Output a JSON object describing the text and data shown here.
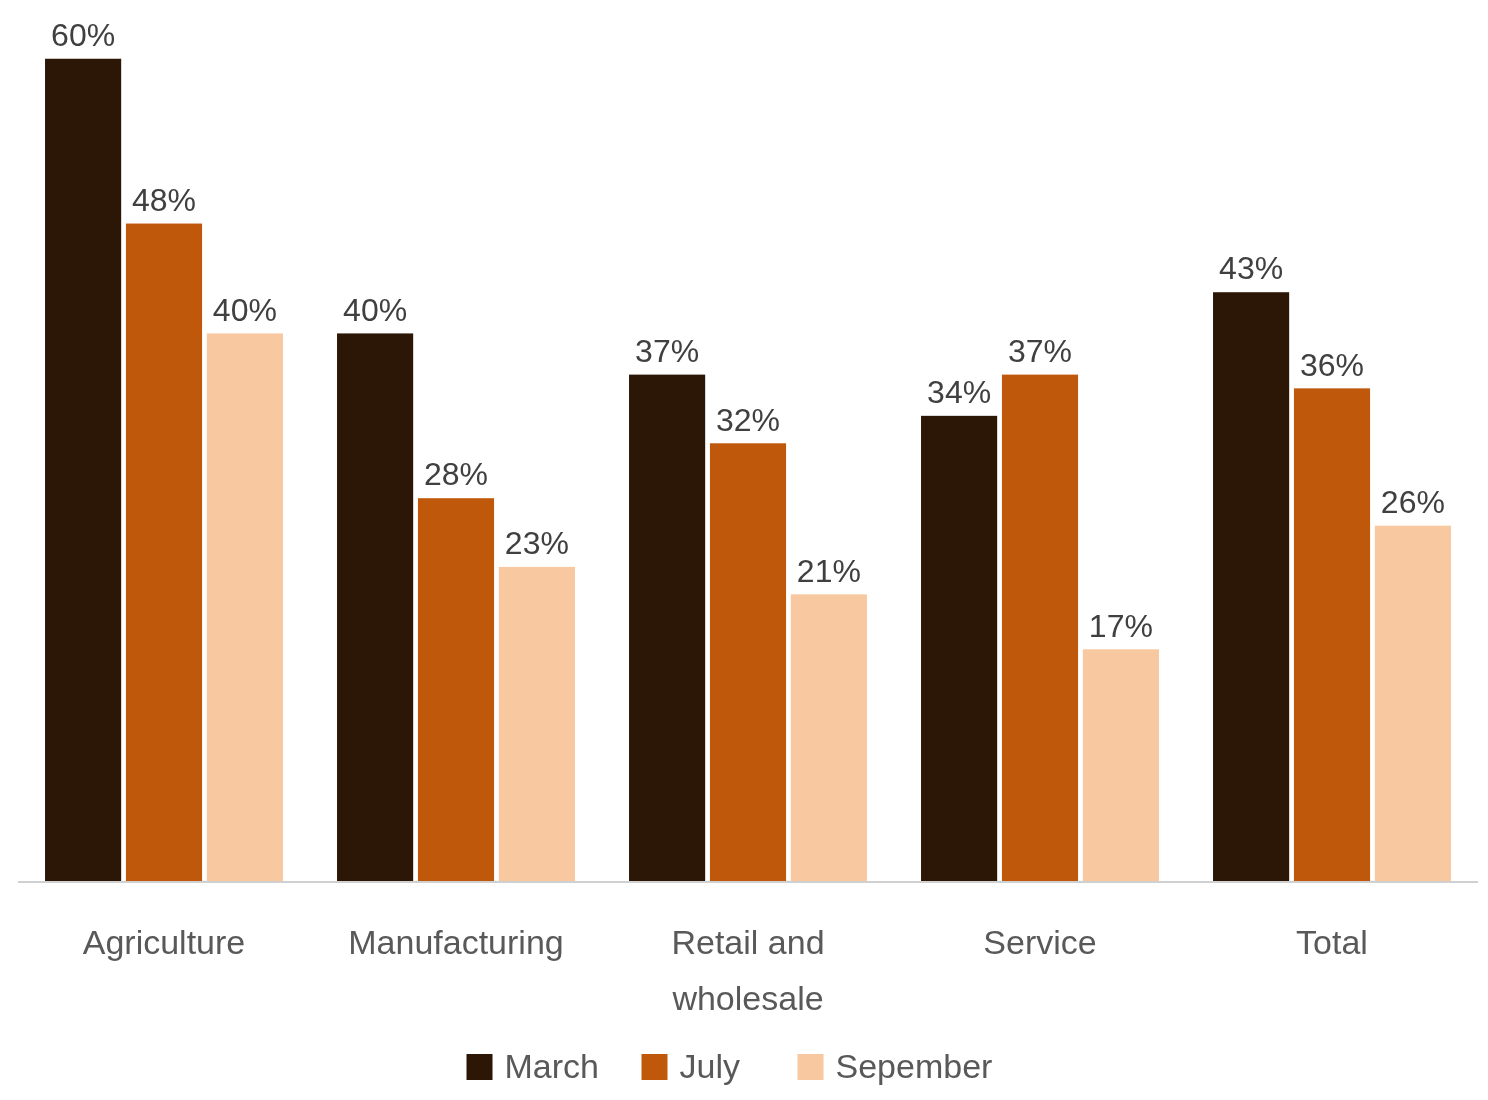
{
  "chart_data": {
    "type": "bar",
    "categories": [
      "Agriculture",
      "Manufacturing",
      "Retail and wholesale",
      "Service",
      "Total"
    ],
    "series": [
      {
        "name": "March",
        "color": "#2c1606",
        "values": [
          60,
          40,
          37,
          34,
          43
        ],
        "value_labels": [
          "60%",
          "40%",
          "37%",
          "34%",
          "43%"
        ]
      },
      {
        "name": "July",
        "color": "#c0580c",
        "values": [
          48,
          28,
          32,
          37,
          36
        ],
        "value_labels": [
          "48%",
          "28%",
          "32%",
          "37%",
          "36%"
        ]
      },
      {
        "name": "Sepember",
        "color": "#f8c9a0",
        "values": [
          40,
          23,
          21,
          17,
          26
        ],
        "value_labels": [
          "40%",
          "23%",
          "21%",
          "17%",
          "26%"
        ]
      }
    ],
    "legend": "bottom"
  }
}
